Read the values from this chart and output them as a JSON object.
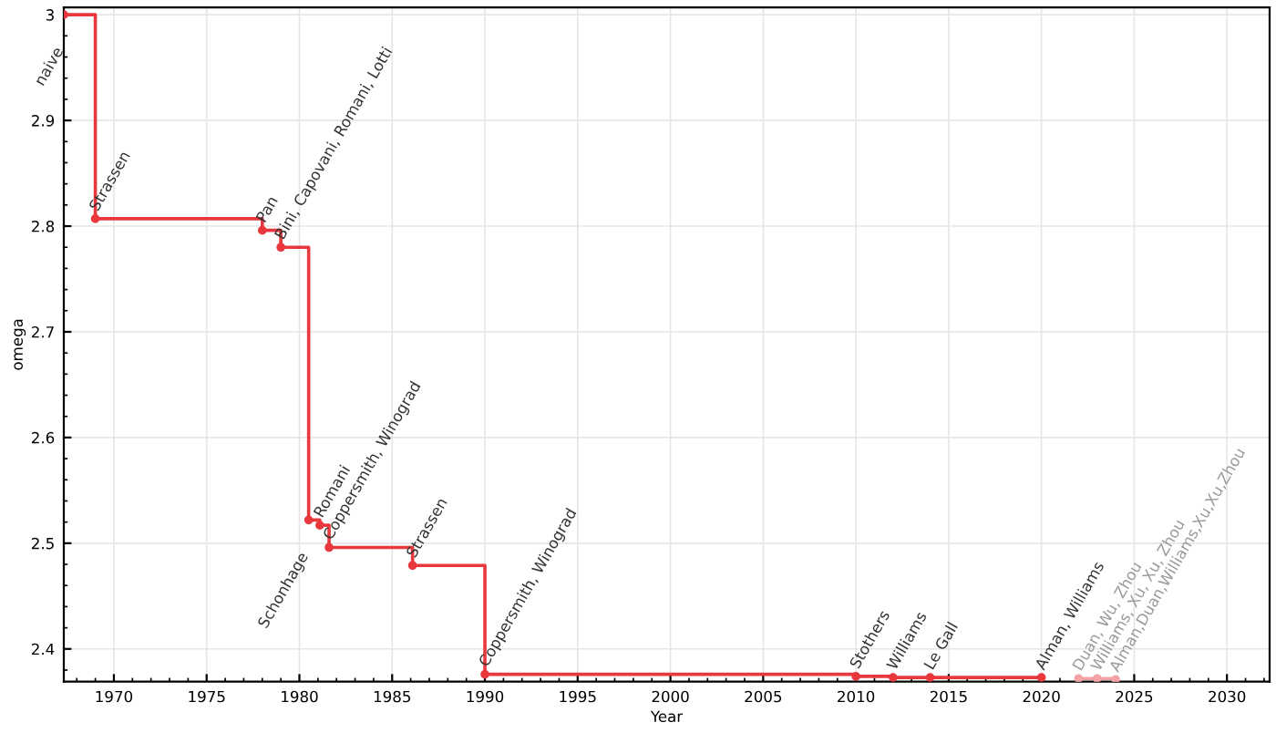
{
  "chart_data": {
    "type": "step",
    "xlabel": "Year",
    "ylabel": "omega",
    "series": [
      {
        "color": "#e8383d",
        "x": [
          1967.3,
          1969,
          1978,
          1979,
          1980.5,
          1981.1,
          1981.6,
          1986.1,
          1990,
          2010,
          2012,
          2014,
          2020
        ],
        "values": [
          3,
          2.807,
          2.796,
          2.78,
          2.522,
          2.517,
          2.496,
          2.479,
          2.376,
          2.374,
          2.373,
          2.373,
          2.373
        ]
      },
      {
        "color": "#f2a3a6",
        "x": [
          2022,
          2023,
          2024
        ],
        "values": [
          2.372,
          2.372,
          2.371
        ]
      }
    ],
    "annotations": [
      {
        "text": "naive",
        "x": 1967.3,
        "y": 3
      },
      {
        "text": "Strassen",
        "x": 1969,
        "y": 2.807
      },
      {
        "text": "Pan",
        "x": 1978,
        "y": 2.796
      },
      {
        "text": "Bini, Capovani, Romani, Lotti",
        "x": 1979,
        "y": 2.78
      },
      {
        "text": "Schonhage",
        "x": 1980.5,
        "y": 2.522
      },
      {
        "text": "Romani",
        "x": 1981.1,
        "y": 2.517
      },
      {
        "text": "Coppersmith, Winograd",
        "x": 1981.6,
        "y": 2.496
      },
      {
        "text": "Strassen",
        "x": 1986.1,
        "y": 2.479
      },
      {
        "text": "Coppersmith, Winograd",
        "x": 1990,
        "y": 2.376
      },
      {
        "text": "Stothers",
        "x": 2010,
        "y": 2.374
      },
      {
        "text": "Williams",
        "x": 2012,
        "y": 2.373
      },
      {
        "text": "Le Gall",
        "x": 2014,
        "y": 2.373
      },
      {
        "text": "Alman, Williams",
        "x": 2020,
        "y": 2.373
      },
      {
        "text": "Duan, Wu, Zhou",
        "x": 2022,
        "y": 2.372
      },
      {
        "text": "Williams, Xu, Xu, Zhou",
        "x": 2023,
        "y": 2.372
      },
      {
        "text": "Alman,Duan,Williams,Xu,Xu,Zhou",
        "x": 2024,
        "y": 2.371
      }
    ],
    "xlim": [
      1967.3,
      2032.3
    ],
    "ylim": [
      2.369,
      3.007
    ],
    "xticks": [
      1970,
      1975,
      1980,
      1985,
      1990,
      1995,
      2000,
      2005,
      2010,
      2015,
      2020,
      2025,
      2030
    ],
    "yticks": [
      2.4,
      2.5,
      2.6,
      2.7,
      2.8,
      2.9,
      3
    ],
    "grid": true,
    "marker": "circle",
    "line_style": "solid"
  }
}
